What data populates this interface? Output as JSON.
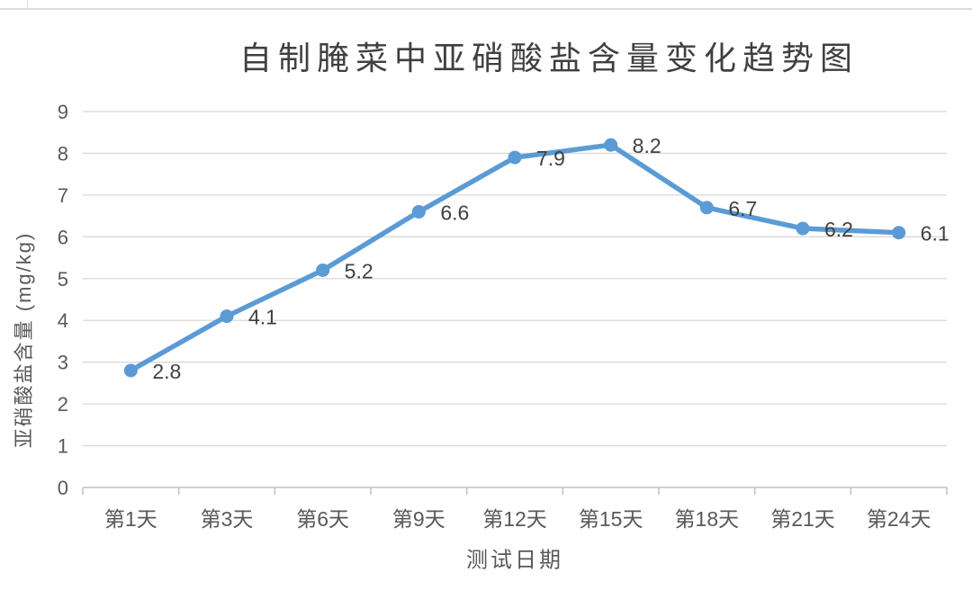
{
  "chart_data": {
    "type": "line",
    "title": "自制腌菜中亚硝酸盐含量变化趋势图",
    "categories": [
      "第1天",
      "第3天",
      "第6天",
      "第9天",
      "第12天",
      "第15天",
      "第18天",
      "第21天",
      "第24天"
    ],
    "values": [
      2.8,
      4.1,
      5.2,
      6.6,
      7.9,
      8.2,
      6.7,
      6.2,
      6.1
    ],
    "point_labels": [
      "2.8",
      "4.1",
      "5.2",
      "6.6",
      "7.9",
      "8.2",
      "6.7",
      "6.2",
      "6.1"
    ],
    "xlabel": "测试日期",
    "ylabel": "亚硝酸盐含量 (mg/kg)",
    "ylim": [
      0,
      9
    ],
    "ytick_interval": 1,
    "yticks": [
      "0",
      "1",
      "2",
      "3",
      "4",
      "5",
      "6",
      "7",
      "8",
      "9"
    ],
    "grid": true,
    "legend_position": "none",
    "marker": "circle",
    "colors": {
      "series": "#5B9BD5",
      "gridline": "#D9D9D9",
      "axis_line": "#BFBFBF",
      "axis_text": "#595959",
      "title_text": "#404040",
      "point_label_text": "#404040",
      "background": "#FFFFFF",
      "sheet_gridline": "#DCDCDC"
    }
  }
}
